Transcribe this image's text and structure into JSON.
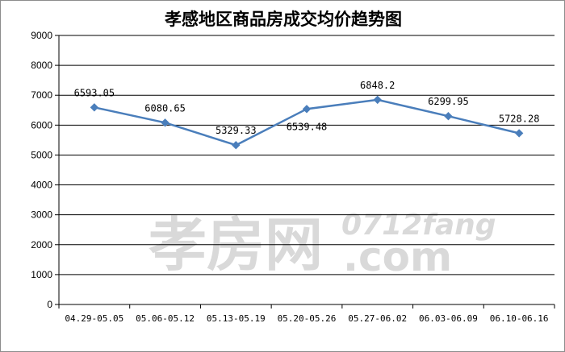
{
  "chart_data": {
    "type": "line",
    "title": "孝感地区商品房成交均价趋势图",
    "categories": [
      "04.29-05.05",
      "05.06-05.12",
      "05.13-05.19",
      "05.20-05.26",
      "05.27-06.02",
      "06.03-06.09",
      "06.10-06.16"
    ],
    "values": [
      6593.05,
      6080.65,
      5329.33,
      6539.48,
      6848.2,
      6299.95,
      5728.28
    ],
    "data_labels": [
      "6593.05",
      "6080.65",
      "5329.33",
      "6539.48",
      "6848.2",
      "6299.95",
      "5728.28"
    ],
    "ylim": [
      0,
      9000
    ],
    "yticks": [
      "0",
      "1000",
      "2000",
      "3000",
      "4000",
      "5000",
      "6000",
      "7000",
      "8000",
      "9000"
    ],
    "grid": true,
    "legend": "none",
    "line_color": "#4a7ebb",
    "marker": "diamond"
  },
  "watermark": {
    "chinese": "孝房网",
    "english_top": "0712fang",
    "english_bottom": ".com"
  }
}
